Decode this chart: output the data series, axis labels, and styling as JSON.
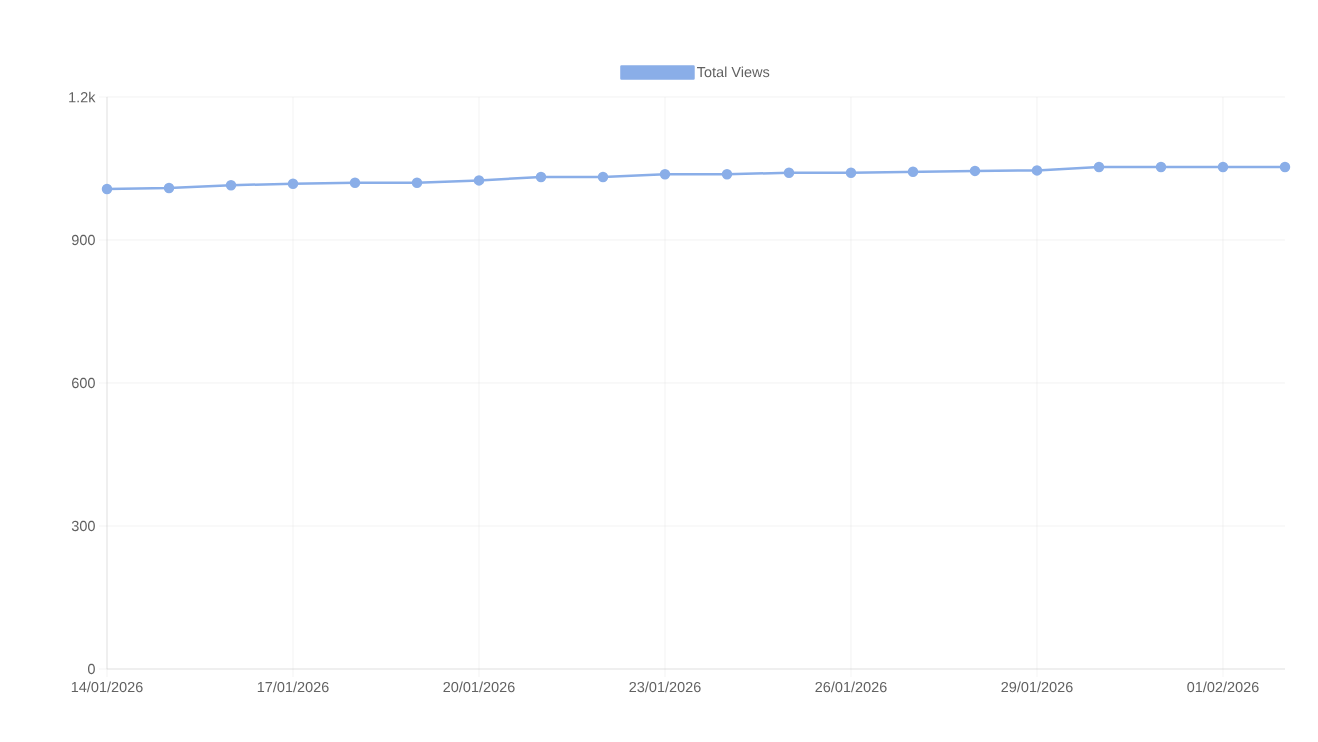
{
  "chart_data": {
    "type": "line",
    "x": [
      "2026-01-14",
      "2026-01-15",
      "2026-01-16",
      "2026-01-17",
      "2026-01-18",
      "2026-01-19",
      "2026-01-20",
      "2026-01-21",
      "2026-01-22",
      "2026-01-23",
      "2026-01-24",
      "2026-01-25",
      "2026-01-26",
      "2026-01-27",
      "2026-01-28",
      "2026-01-29",
      "2026-01-30",
      "2026-01-31",
      "2026-02-01",
      "2026-02-02"
    ],
    "series": [
      {
        "name": "Total Views",
        "color": "#8aaee8",
        "values": [
          1007,
          1009,
          1015,
          1018,
          1020,
          1020,
          1025,
          1032,
          1032,
          1038,
          1038,
          1041,
          1041,
          1043,
          1045,
          1046,
          1053,
          1053,
          1053,
          1053
        ]
      }
    ],
    "xlim": [
      "2026-01-14",
      "2026-02-02"
    ],
    "xticks": [
      {
        "value": "2026-01-14",
        "label": "14/01/2026"
      },
      {
        "value": "2026-01-17",
        "label": "17/01/2026"
      },
      {
        "value": "2026-01-20",
        "label": "20/01/2026"
      },
      {
        "value": "2026-01-23",
        "label": "23/01/2026"
      },
      {
        "value": "2026-01-26",
        "label": "26/01/2026"
      },
      {
        "value": "2026-01-29",
        "label": "29/01/2026"
      },
      {
        "value": "2026-02-01",
        "label": "01/02/2026"
      }
    ],
    "ylim": [
      0,
      1200
    ],
    "yticks": [
      0,
      300,
      600,
      900,
      {
        "value": 1200,
        "label": "1.2k"
      }
    ],
    "grid": true,
    "legend": "top",
    "marker": "circle",
    "line_style": "solid"
  }
}
